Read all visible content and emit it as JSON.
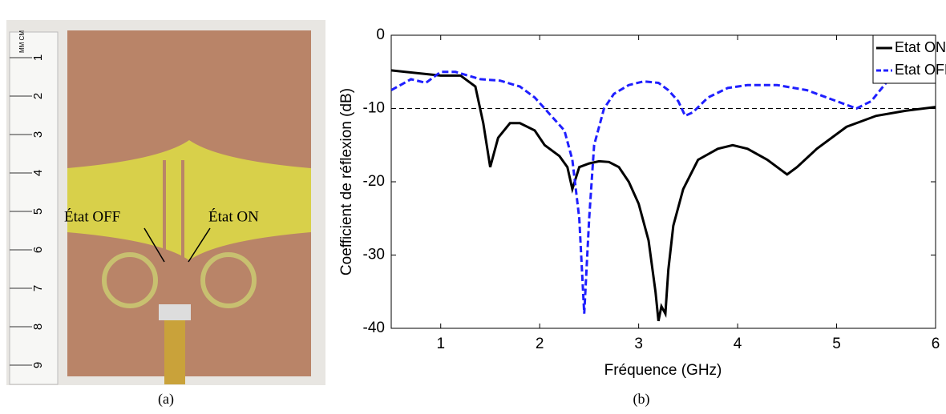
{
  "photo": {
    "ruler_labels": [
      "1",
      "2",
      "3",
      "4",
      "5",
      "6",
      "7",
      "8",
      "9"
    ],
    "ruler_unit": "MM CM",
    "labels": [
      "État OFF",
      "État ON"
    ]
  },
  "captions": [
    "(a)",
    "(b)"
  ],
  "chart_data": {
    "type": "line",
    "x_label": "Fréquence (GHz)",
    "y_label": "Coefficient de réflexion (dB)",
    "xlim": [
      0.5,
      6
    ],
    "xticks": [
      1,
      2,
      3,
      4,
      5,
      6
    ],
    "ylim": [
      -40,
      0
    ],
    "yticks": [
      -40,
      -30,
      -20,
      -10,
      0
    ],
    "grid": false,
    "legend": "top-right",
    "reference_line": -10,
    "series": [
      {
        "name": "Etat ON",
        "color": "#000000",
        "dash": false,
        "x": [
          0.5,
          1.0,
          1.2,
          1.35,
          1.43,
          1.5,
          1.58,
          1.7,
          1.8,
          1.95,
          2.05,
          2.2,
          2.28,
          2.33,
          2.4,
          2.5,
          2.6,
          2.7,
          2.8,
          2.9,
          3.0,
          3.1,
          3.17,
          3.2,
          3.23,
          3.27,
          3.3,
          3.35,
          3.45,
          3.6,
          3.8,
          3.95,
          4.1,
          4.3,
          4.45,
          4.5,
          4.6,
          4.8,
          5.1,
          5.4,
          5.7,
          6.0
        ],
        "values": [
          -4.8,
          -5.5,
          -5.5,
          -7,
          -12,
          -18,
          -14,
          -12,
          -12,
          -13,
          -15,
          -16.5,
          -18,
          -21,
          -18,
          -17.5,
          -17.2,
          -17.3,
          -18,
          -20,
          -23,
          -28,
          -35,
          -39,
          -37,
          -38,
          -32,
          -26,
          -21,
          -17,
          -15.5,
          -15,
          -15.5,
          -17,
          -18.5,
          -19,
          -18,
          -15.5,
          -12.5,
          -11,
          -10.3,
          -9.8
        ]
      },
      {
        "name": "Etat OFF",
        "color": "#1f1fff",
        "dash": true,
        "x": [
          0.5,
          0.7,
          0.85,
          1.0,
          1.15,
          1.4,
          1.6,
          1.8,
          1.95,
          2.05,
          2.15,
          2.25,
          2.33,
          2.4,
          2.45,
          2.5,
          2.55,
          2.65,
          2.75,
          2.9,
          3.05,
          3.2,
          3.3,
          3.4,
          3.47,
          3.55,
          3.7,
          3.9,
          4.1,
          4.4,
          4.7,
          4.9,
          5.1,
          5.2,
          5.35,
          5.5,
          5.6
        ],
        "values": [
          -7.5,
          -6,
          -6.5,
          -5,
          -5,
          -6,
          -6.2,
          -7,
          -8.5,
          -10,
          -11.5,
          -13,
          -17,
          -25,
          -38,
          -25,
          -15,
          -10,
          -8,
          -6.8,
          -6.3,
          -6.5,
          -7.5,
          -9,
          -11,
          -10.5,
          -8.5,
          -7.2,
          -6.8,
          -6.8,
          -7.5,
          -8.5,
          -9.5,
          -10,
          -9,
          -6.5,
          -5
        ]
      }
    ]
  }
}
